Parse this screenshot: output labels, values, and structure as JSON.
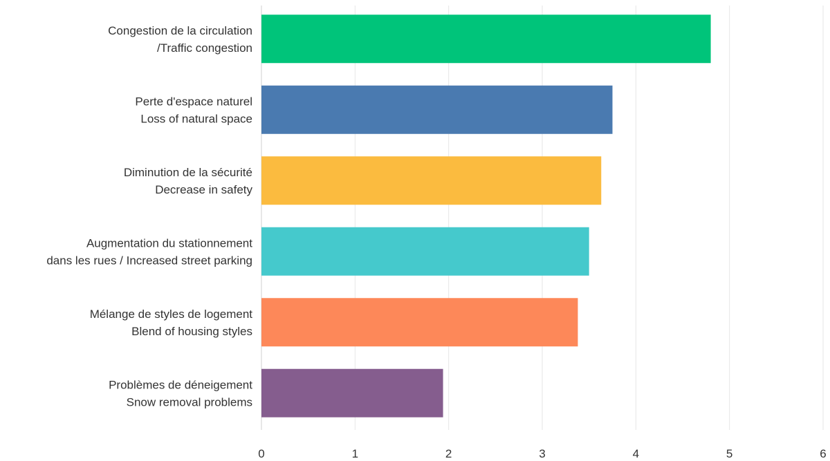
{
  "chart_data": {
    "type": "bar",
    "orientation": "horizontal",
    "title": "",
    "xlabel": "",
    "ylabel": "",
    "xlim": [
      0,
      6
    ],
    "ticks": [
      "0",
      "1",
      "2",
      "3",
      "4",
      "5",
      "6"
    ],
    "grid": true,
    "categories": [
      [
        "Congestion de la circulation",
        "/Traffic congestion"
      ],
      [
        "Perte d'espace naturel",
        "Loss of natural space"
      ],
      [
        "Diminution de la sécurité",
        "Decrease in safety"
      ],
      [
        "Augmentation du stationnement",
        "dans les rues / Increased street parking"
      ],
      [
        "Mélange de styles de logement",
        "Blend of housing styles"
      ],
      [
        "Problèmes de déneigement",
        "Snow removal problems"
      ]
    ],
    "values": [
      4.8,
      3.75,
      3.63,
      3.5,
      3.38,
      1.94
    ],
    "colors": [
      "#00c47a",
      "#4a7ab0",
      "#fbbb3f",
      "#45c9cc",
      "#fd8859",
      "#855d8e"
    ]
  }
}
